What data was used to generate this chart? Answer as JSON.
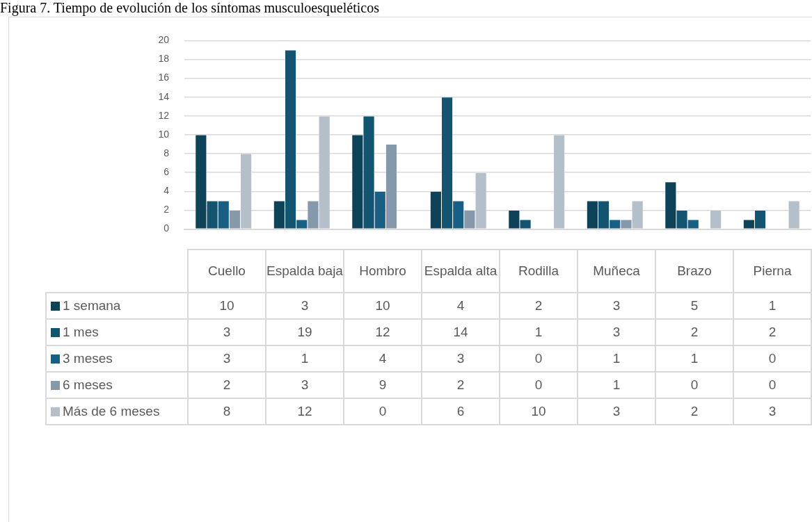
{
  "chart_data": {
    "type": "bar",
    "title": "Figura 7. Tiempo de evolución de los síntomas musculoesqueléticos",
    "categories": [
      "Cuello",
      "Espalda baja",
      "Hombro",
      "Espalda alta",
      "Rodilla",
      "Muñeca",
      "Brazo",
      "Pierna"
    ],
    "series": [
      {
        "name": "1 semana",
        "color": "#0e4259",
        "values": [
          10,
          3,
          10,
          4,
          2,
          3,
          5,
          1
        ]
      },
      {
        "name": "1 mes",
        "color": "#135470",
        "values": [
          3,
          19,
          12,
          14,
          1,
          3,
          2,
          2
        ]
      },
      {
        "name": "3 meses",
        "color": "#185f85",
        "values": [
          3,
          1,
          4,
          3,
          0,
          1,
          1,
          0
        ]
      },
      {
        "name": "6 meses",
        "color": "#8699ab",
        "values": [
          2,
          3,
          9,
          2,
          0,
          1,
          0,
          0
        ]
      },
      {
        "name": "Más de 6 meses",
        "color": "#b4bfc9",
        "values": [
          8,
          12,
          0,
          6,
          10,
          3,
          2,
          3
        ]
      }
    ],
    "ylim": [
      0,
      20
    ],
    "yticks": [
      0,
      2,
      4,
      6,
      8,
      10,
      12,
      14,
      16,
      18,
      20
    ],
    "grid": "y",
    "legend": "bottom",
    "data_labels": true
  }
}
